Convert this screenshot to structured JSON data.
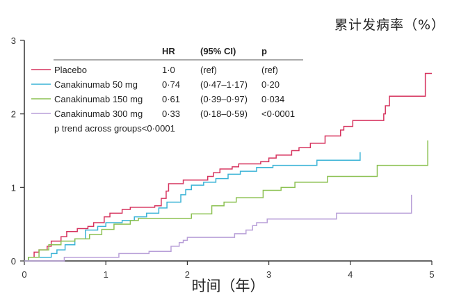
{
  "chart_data": {
    "type": "line",
    "step": true,
    "title": "累计发病率（%）",
    "xlabel": "时间（年）",
    "ylabel": "累计发病率（%）",
    "xlim": [
      0,
      5
    ],
    "ylim": [
      0,
      3
    ],
    "xticks": [
      "0",
      "1",
      "2",
      "3",
      "4",
      "5"
    ],
    "yticks": [
      "0",
      "1",
      "2",
      "3"
    ],
    "grid": false,
    "legend_position": "top-left",
    "legend_headers": {
      "hr": "HR",
      "ci": "(95% CI)",
      "p": "p"
    },
    "p_trend": "p trend across groups<0·0001",
    "series": [
      {
        "name": "Placebo",
        "color": "#d6335e",
        "hr": "1·0",
        "ci": "(ref)",
        "p": "(ref)",
        "points": [
          [
            0,
            0
          ],
          [
            0.05,
            0.05
          ],
          [
            0.12,
            0.12
          ],
          [
            0.18,
            0.15
          ],
          [
            0.28,
            0.2
          ],
          [
            0.33,
            0.27
          ],
          [
            0.45,
            0.33
          ],
          [
            0.52,
            0.4
          ],
          [
            0.65,
            0.44
          ],
          [
            0.78,
            0.47
          ],
          [
            0.85,
            0.52
          ],
          [
            0.98,
            0.6
          ],
          [
            1.05,
            0.65
          ],
          [
            1.2,
            0.7
          ],
          [
            1.3,
            0.73
          ],
          [
            1.6,
            0.75
          ],
          [
            1.68,
            0.85
          ],
          [
            1.74,
            0.95
          ],
          [
            1.77,
            1.05
          ],
          [
            1.95,
            1.1
          ],
          [
            2.25,
            1.15
          ],
          [
            2.32,
            1.2
          ],
          [
            2.4,
            1.25
          ],
          [
            2.55,
            1.28
          ],
          [
            2.63,
            1.32
          ],
          [
            2.9,
            1.35
          ],
          [
            3.0,
            1.4
          ],
          [
            3.09,
            1.44
          ],
          [
            3.28,
            1.5
          ],
          [
            3.37,
            1.54
          ],
          [
            3.51,
            1.6
          ],
          [
            3.69,
            1.7
          ],
          [
            3.88,
            1.78
          ],
          [
            3.92,
            1.83
          ],
          [
            4.03,
            1.91
          ],
          [
            4.41,
            2.0
          ],
          [
            4.43,
            2.11
          ],
          [
            4.48,
            2.24
          ],
          [
            4.92,
            2.55
          ],
          [
            5.0,
            2.55
          ]
        ]
      },
      {
        "name": "Canakinumab 50 mg",
        "color": "#3ab3d6",
        "hr": "0·74",
        "ci": "(0·47–1·17)",
        "p": "0·20",
        "points": [
          [
            0,
            0
          ],
          [
            0.05,
            0.05
          ],
          [
            0.33,
            0.1
          ],
          [
            0.4,
            0.15
          ],
          [
            0.5,
            0.22
          ],
          [
            0.62,
            0.3
          ],
          [
            0.75,
            0.42
          ],
          [
            0.9,
            0.47
          ],
          [
            1.0,
            0.52
          ],
          [
            1.2,
            0.55
          ],
          [
            1.35,
            0.6
          ],
          [
            1.5,
            0.65
          ],
          [
            1.65,
            0.72
          ],
          [
            1.75,
            0.8
          ],
          [
            1.92,
            0.9
          ],
          [
            1.98,
            0.97
          ],
          [
            2.05,
            1.03
          ],
          [
            2.2,
            1.07
          ],
          [
            2.35,
            1.12
          ],
          [
            2.5,
            1.18
          ],
          [
            2.65,
            1.22
          ],
          [
            2.85,
            1.27
          ],
          [
            3.05,
            1.3
          ],
          [
            3.59,
            1.37
          ],
          [
            4.12,
            1.48
          ]
        ]
      },
      {
        "name": "Canakinumab 150 mg",
        "color": "#8cc152",
        "hr": "0·61",
        "ci": "(0·39–0·97)",
        "p": "0·034",
        "points": [
          [
            0,
            0
          ],
          [
            0.05,
            0.05
          ],
          [
            0.18,
            0.15
          ],
          [
            0.3,
            0.22
          ],
          [
            0.45,
            0.27
          ],
          [
            0.62,
            0.3
          ],
          [
            0.8,
            0.36
          ],
          [
            0.95,
            0.43
          ],
          [
            1.1,
            0.5
          ],
          [
            1.3,
            0.55
          ],
          [
            1.4,
            0.58
          ],
          [
            2.05,
            0.64
          ],
          [
            2.3,
            0.75
          ],
          [
            2.45,
            0.8
          ],
          [
            2.6,
            0.86
          ],
          [
            2.93,
            0.96
          ],
          [
            3.15,
            1.0
          ],
          [
            3.32,
            1.07
          ],
          [
            3.72,
            1.15
          ],
          [
            4.33,
            1.3
          ],
          [
            4.95,
            1.64
          ]
        ]
      },
      {
        "name": "Canakinumab 300 mg",
        "color": "#b89fd8",
        "hr": "0·33",
        "ci": "(0·18–0·59)",
        "p": "<0·0001",
        "points": [
          [
            0,
            0
          ],
          [
            0.49,
            0.05
          ],
          [
            1.16,
            0.1
          ],
          [
            1.53,
            0.13
          ],
          [
            1.8,
            0.2
          ],
          [
            1.9,
            0.25
          ],
          [
            1.95,
            0.28
          ],
          [
            2.0,
            0.32
          ],
          [
            2.58,
            0.37
          ],
          [
            2.72,
            0.42
          ],
          [
            2.8,
            0.48
          ],
          [
            2.85,
            0.52
          ],
          [
            2.98,
            0.57
          ],
          [
            3.83,
            0.65
          ],
          [
            4.75,
            0.9
          ]
        ]
      }
    ]
  }
}
